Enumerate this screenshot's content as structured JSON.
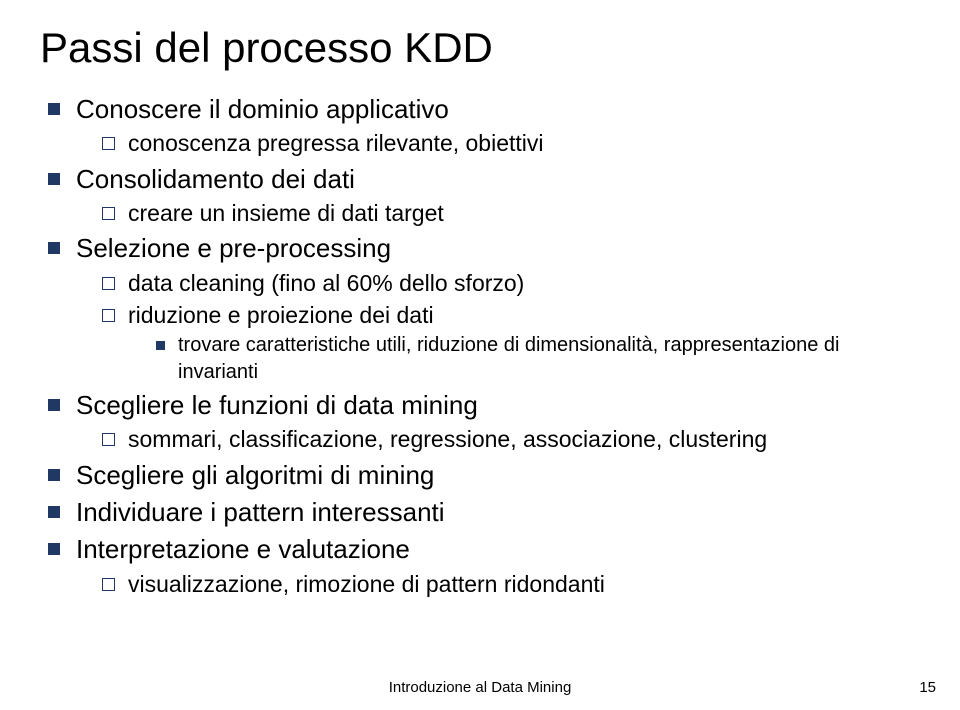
{
  "title": "Passi del processo KDD",
  "items": [
    {
      "label": "Conoscere il dominio applicativo",
      "children": [
        {
          "label": "conoscenza pregressa rilevante, obiettivi"
        }
      ]
    },
    {
      "label": "Consolidamento dei dati",
      "children": [
        {
          "label": "creare un insieme di dati target"
        }
      ]
    },
    {
      "label": "Selezione e pre-processing",
      "children": [
        {
          "label": "data cleaning (fino al 60% dello sforzo)"
        },
        {
          "label": "riduzione e proiezione dei dati",
          "children": [
            {
              "label": "trovare caratteristiche utili, riduzione di dimensionalità, rappresentazione di invarianti"
            }
          ]
        }
      ]
    },
    {
      "label": "Scegliere le funzioni di data mining",
      "children": [
        {
          "label": "sommari, classificazione, regressione, associazione, clustering"
        }
      ]
    },
    {
      "label": "Scegliere gli algoritmi di mining"
    },
    {
      "label": "Individuare i pattern interessanti"
    },
    {
      "label": "Interpretazione e valutazione",
      "children": [
        {
          "label": "visualizzazione, rimozione di pattern ridondanti"
        }
      ]
    }
  ],
  "footer": "Introduzione al Data Mining",
  "page_number": "15",
  "colors": {
    "bullet": "#1f3864",
    "text": "#000000",
    "background": "#ffffff"
  }
}
